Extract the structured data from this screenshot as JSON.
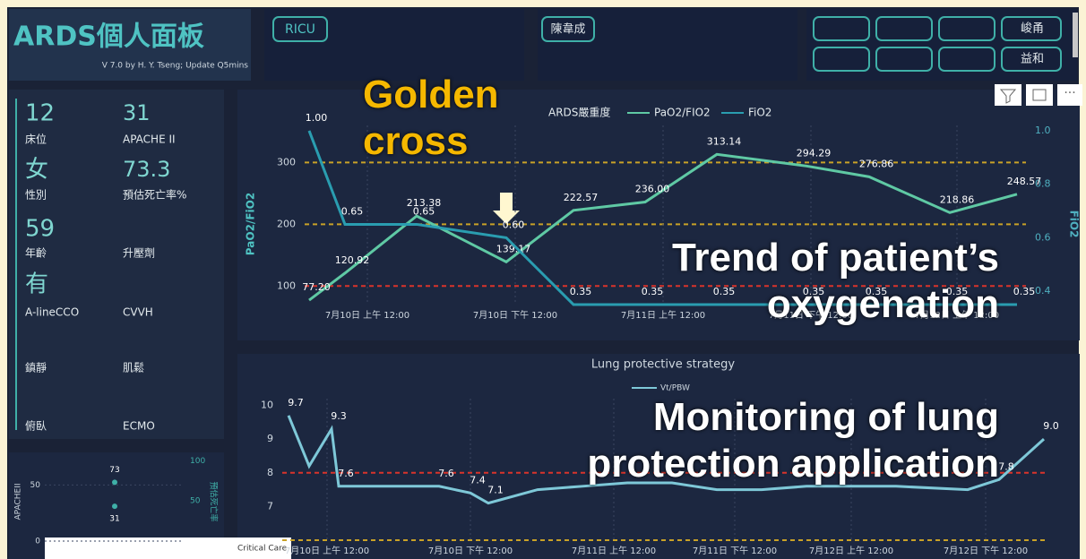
{
  "header": {
    "title": "ARDS個人面板",
    "version": "V 7.0 by H. Y. Tseng; Update Q5mins",
    "unit_button": "RICU",
    "doctor_button": "陳韋成",
    "staff_buttons": [
      "峻甬",
      "益和"
    ]
  },
  "patient": [
    {
      "value": 12,
      "label": "床位"
    },
    {
      "value": 31,
      "label": "APACHE II"
    },
    {
      "value": "女",
      "label": "性別"
    },
    {
      "value": 73.3,
      "label": "預估死亡率%"
    },
    {
      "value": 59,
      "label": "年齡"
    },
    {
      "label": "升壓劑"
    },
    {
      "value": "有",
      "label": "A-lineCCO"
    },
    {
      "label": "CVVH"
    },
    {
      "label": "鎮靜"
    },
    {
      "label": "肌鬆"
    },
    {
      "label": "俯臥"
    },
    {
      "label": "ECMO"
    }
  ],
  "annotations": {
    "golden_cross": "Golden cross",
    "oxygenation": "Trend of patient’s oxygenation",
    "lung_protection": "Monitoring of lung protection application"
  },
  "oxygenation_chart": {
    "type": "line",
    "title": "ARDS嚴重度",
    "y_label": "PaO2/FiO2",
    "y2_label": "FiO2",
    "x_labels": [
      "7月10日 上午 12:00",
      "7月10日 下午 12:00",
      "7月11日 上午 12:00",
      "7月11日 下午 12:00",
      "7月12日 上午 12:00"
    ],
    "series": [
      {
        "name": "PaO2/FIO2",
        "color": "#5fc9a4",
        "values": [
          77.2,
          120.92,
          213.38,
          139.17,
          222.57,
          236,
          313.14,
          294.29,
          276.86,
          218.86,
          248.57
        ],
        "value_labels": [
          "77.20",
          "120.92",
          "213.38",
          "139.17",
          "222.57",
          "236.00",
          "313.14",
          "294.29",
          "276.86",
          "218.86",
          "248.57"
        ]
      },
      {
        "name": "FiO2",
        "color": "#2a9db0",
        "axis": "y2",
        "values": [
          1,
          0.65,
          0.65,
          0.6,
          0.35,
          0.35,
          0.35,
          0.35,
          0.35,
          0.35,
          0.35
        ],
        "value_labels": [
          "1.00",
          "0.65",
          "0.65",
          "0.60",
          "0.35",
          "0.35",
          "0.35",
          "0.35",
          "0.35",
          "0.35",
          "0.35"
        ]
      }
    ],
    "ylim": [
      70,
      360
    ],
    "yticks": [
      100,
      200,
      300
    ],
    "y2lim": [
      0.35,
      1.02
    ],
    "y2ticks": [
      {
        "value": 1,
        "label": "1.0"
      },
      0.8,
      0.6,
      0.4
    ],
    "reference_lines": [
      {
        "value": 300,
        "color": "#c9a227"
      },
      {
        "value": 200,
        "color": "#c9a227"
      },
      {
        "value": 100,
        "color": "#d9342b"
      }
    ]
  },
  "lung_chart": {
    "type": "line",
    "title": "Lung protective strategy",
    "x_labels": [
      "7月10日 上午 12:00",
      "7月10日 下午 12:00",
      "7月11日 上午 12:00",
      "7月11日 下午 12:00",
      "7月12日 上午 12:00",
      "7月12日 下午 12:00"
    ],
    "series": [
      {
        "name": "Vt/PBW",
        "color": "#7ec8d8",
        "values": [
          9.7,
          8.2,
          9.3,
          7.6,
          7.6,
          7.4,
          7.1,
          7.5,
          7.6,
          7.7,
          7.7,
          7.5,
          7.5,
          7.6,
          7.6,
          7.5,
          7.8,
          9.0
        ],
        "value_labels": [
          "9.7",
          null,
          "9.3",
          "7.6",
          "7.6",
          "7.4",
          "7.1",
          null,
          null,
          null,
          null,
          null,
          null,
          null,
          null,
          null,
          "7.8",
          "9.0"
        ]
      }
    ],
    "ylim": [
      6,
      10.2
    ],
    "yticks": [
      7,
      8,
      9,
      10
    ],
    "reference_lines": [
      {
        "value": 8,
        "color": "#d9342b"
      },
      {
        "value": 6,
        "color": "#c9a227"
      }
    ]
  },
  "mini_chart": {
    "type": "scatter",
    "y_label": "APACHEII",
    "y2_label": "預估死亡率",
    "series": [
      {
        "name": "APACHE II",
        "color": "#3fb0a8",
        "values": [
          31
        ],
        "value_labels": [
          "31"
        ]
      },
      {
        "name": "預估死亡率",
        "color": "#3fb0a8",
        "axis": "y2",
        "values": [
          73.3
        ],
        "value_labels": [
          "73"
        ]
      }
    ],
    "ylim": [
      0,
      75
    ],
    "yticks": [
      0,
      50
    ],
    "y2lim": [
      0,
      105
    ],
    "y2ticks": [
      50,
      100
    ]
  },
  "thumbnail": "Critical Care"
}
